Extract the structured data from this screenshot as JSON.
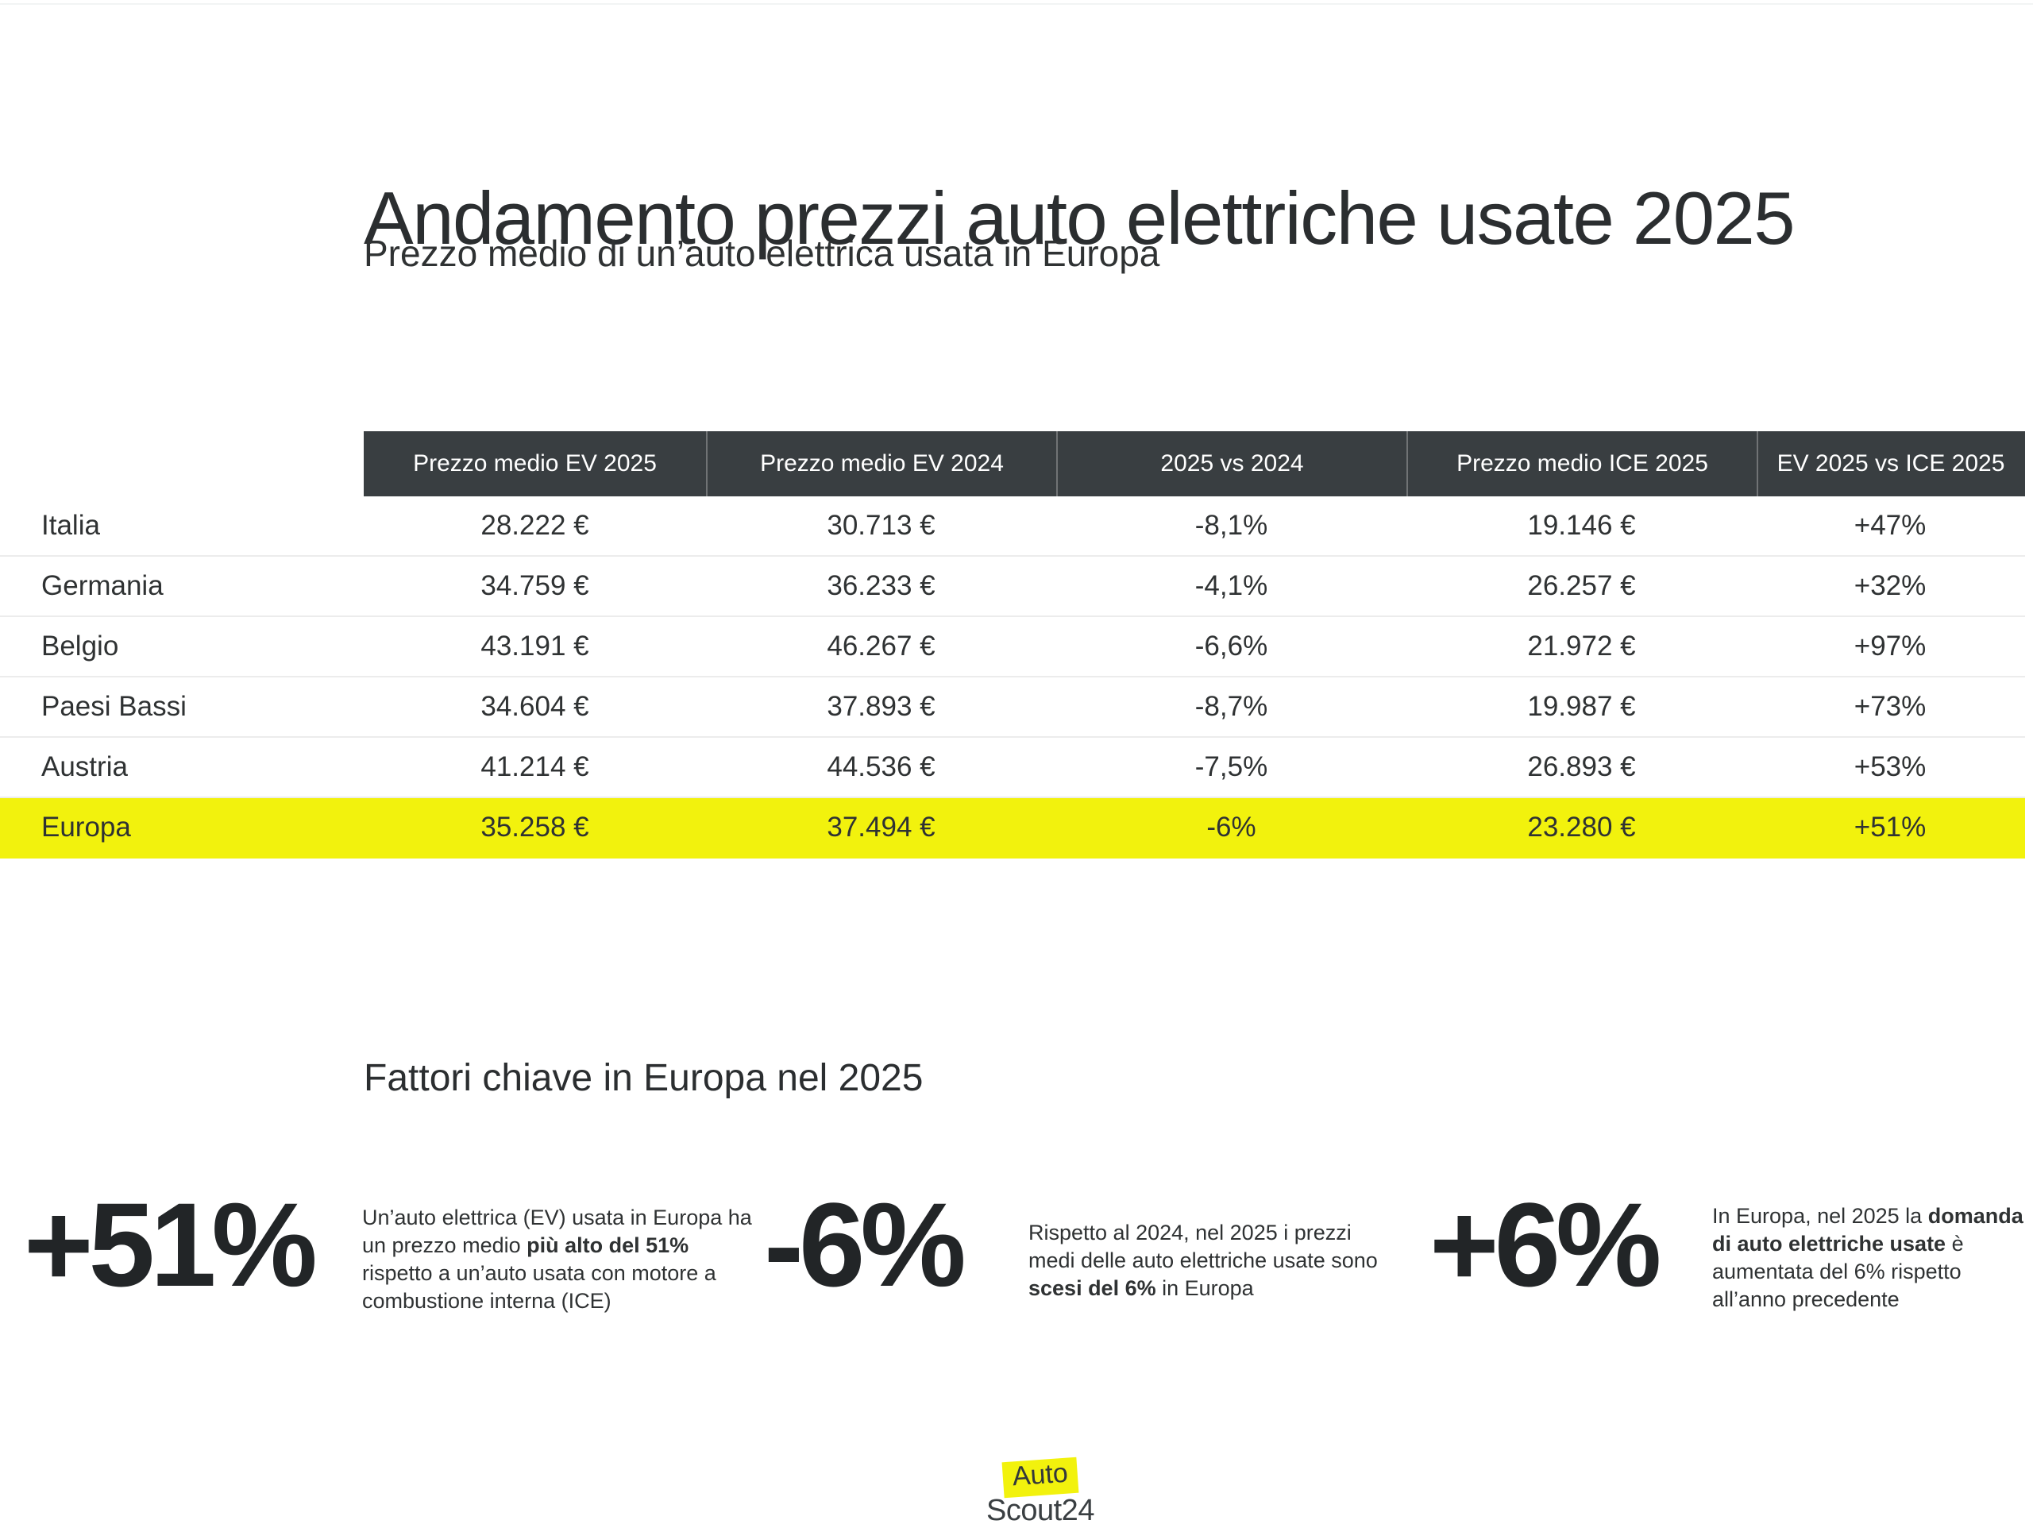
{
  "page": {
    "title": "Andamento prezzi auto elettriche usate 2025",
    "subtitle": "Prezzo medio di un’auto elettrica usata in Europa"
  },
  "chart_data": {
    "type": "table",
    "title": "Andamento prezzi auto elettriche usate 2025",
    "subtitle": "Prezzo medio di un’auto elettrica usata in Europa",
    "columns": [
      "Prezzo medio EV 2025",
      "Prezzo medio EV 2024",
      "2025 vs 2024",
      "Prezzo medio ICE 2025",
      "EV 2025 vs ICE 2025"
    ],
    "rows": [
      {
        "country": "Italia",
        "values": [
          "28.222 €",
          "30.713 €",
          "-8,1%",
          "19.146 €",
          "+47%"
        ],
        "highlighted": false
      },
      {
        "country": "Germania",
        "values": [
          "34.759 €",
          "36.233 €",
          "-4,1%",
          "26.257 €",
          "+32%"
        ],
        "highlighted": false
      },
      {
        "country": "Belgio",
        "values": [
          "43.191 €",
          "46.267 €",
          "-6,6%",
          "21.972 €",
          "+97%"
        ],
        "highlighted": false
      },
      {
        "country": "Paesi Bassi",
        "values": [
          "34.604 €",
          "37.893 €",
          "-8,7%",
          "19.987 €",
          "+73%"
        ],
        "highlighted": false
      },
      {
        "country": "Austria",
        "values": [
          "41.214 €",
          "44.536 €",
          "-7,5%",
          "26.893 €",
          "+53%"
        ],
        "highlighted": false
      },
      {
        "country": "Europa",
        "values": [
          "35.258 €",
          "37.494 €",
          "-6%",
          "23.280 €",
          "+51%"
        ],
        "highlighted": true
      }
    ],
    "highlighted_row": "Europa",
    "layout": {
      "header_background": "#393e41",
      "highlight_color": "#f2f20d",
      "grid": "horizontal-lines"
    }
  },
  "key_factors": {
    "heading": "Fattori chiave in Europa nel 2025",
    "stats": [
      {
        "value": "+51%",
        "text_before": "Un’auto elettrica (EV) usata in Europa ha un prezzo medio ",
        "text_bold": "più alto del 51%",
        "text_after": " rispetto a un’auto usata con motore a combustione interna (ICE)"
      },
      {
        "value": "-6%",
        "text_before": "Rispetto al 2024, nel 2025 i prezzi medi delle auto elettriche usate sono ",
        "text_bold": "scesi del 6%",
        "text_after": " in Europa"
      },
      {
        "value": "+6%",
        "text_before": "In Europa, nel 2025 la ",
        "text_bold": "domanda di auto elettriche usate",
        "text_after": " è aumentata del 6% rispetto all’anno precedente"
      }
    ]
  },
  "footer": {
    "logo_line1": "Auto",
    "logo_line2": "Scout24"
  },
  "colors": {
    "accent_yellow": "#f2f20d",
    "header_dark": "#393e41",
    "text_dark": "#2f3233",
    "separator": "#ececec"
  }
}
